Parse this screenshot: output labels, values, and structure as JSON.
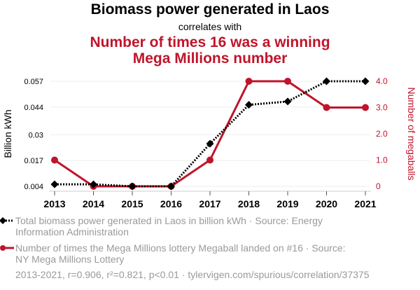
{
  "header": {
    "title": "Biomass power generated in Laos",
    "subtitle": "correlates with",
    "title2_line1": "Number of times 16 was a winning",
    "title2_line2": "Mega Millions number"
  },
  "chart_data": {
    "type": "line",
    "x": [
      "2013",
      "2014",
      "2015",
      "2016",
      "2017",
      "2018",
      "2019",
      "2020",
      "2021"
    ],
    "series": [
      {
        "name": "Total biomass power generated in Laos in billion kWh",
        "axis": "left",
        "color": "#000000",
        "marker": "diamond",
        "line_style": "dotted",
        "values": [
          0.005,
          0.005,
          0.004,
          0.004,
          0.0255,
          0.0451,
          0.0468,
          0.057,
          0.057
        ]
      },
      {
        "name": "Number of times the Mega Millions lottery Megaball landed on #16",
        "axis": "right",
        "color": "#c0142b",
        "marker": "circle",
        "line_style": "solid",
        "values": [
          1,
          0,
          0,
          0,
          1,
          4,
          4,
          3,
          3
        ]
      }
    ],
    "left_axis": {
      "label": "Billion kWh",
      "ticks": [
        "0.004",
        "0.017",
        "0.03",
        "0.044",
        "0.057"
      ],
      "tick_values": [
        0.004,
        0.017,
        0.03,
        0.044,
        0.057
      ],
      "range": [
        0.004,
        0.057
      ]
    },
    "right_axis": {
      "label": "Number of megaballs",
      "ticks": [
        "0",
        "1.0",
        "2.0",
        "3.0",
        "4.0"
      ],
      "tick_values": [
        0,
        1,
        2,
        3,
        4
      ],
      "range": [
        0,
        4
      ],
      "color": "#c0142b"
    },
    "grid": true
  },
  "legend": {
    "series1_line1": "Total biomass power generated in Laos in billion kWh · Source: Energy",
    "series1_line2": "Information Administration",
    "series2_line1": "Number of times the Mega Millions lottery Megaball landed on #16 · Source:",
    "series2_line2": "NY Mega Millions Lottery"
  },
  "footer": {
    "text": "2013-2021, r=0.906, r²=0.821, p<0.01 · tylervigen.com/spurious/correlation/37375"
  }
}
